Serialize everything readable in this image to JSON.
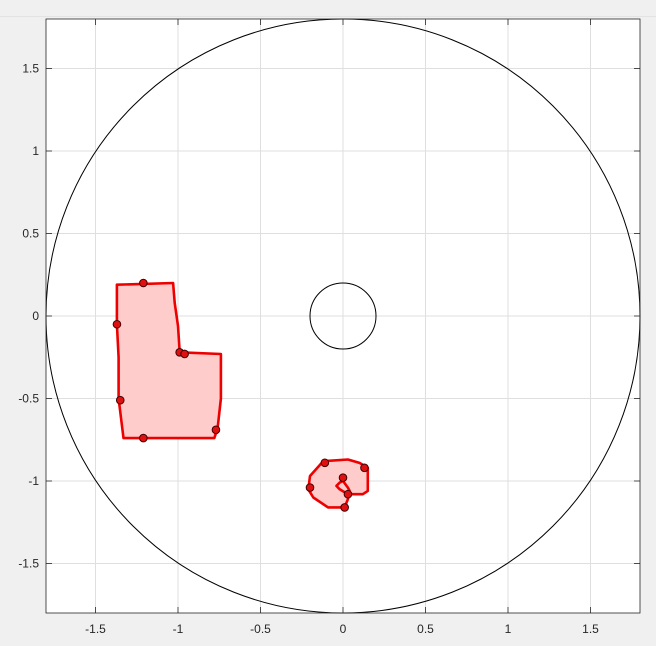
{
  "colors": {
    "figure_bg": "#f0f0f0",
    "axes_bg": "#ffffff",
    "grid": "#dfdfdf",
    "axis": "#262626",
    "circle": "#000000",
    "polygon_edge": "#ee0000",
    "polygon_fill": "#ffcccc",
    "marker_fill": "#e01010",
    "marker_edge": "#400000"
  },
  "chart_data": {
    "type": "scatter",
    "title": "",
    "xlabel": "",
    "ylabel": "",
    "xlim": [
      -1.8,
      1.8
    ],
    "ylim": [
      -1.8,
      1.8
    ],
    "grid": true,
    "x_ticks": [
      -1.5,
      -1,
      -0.5,
      0,
      0.5,
      1,
      1.5
    ],
    "x_tick_labels": [
      "-1.5",
      "-1",
      "-0.5",
      "0",
      "0.5",
      "1",
      "1.5"
    ],
    "y_ticks": [
      -1.5,
      -1,
      -0.5,
      0,
      0.5,
      1,
      1.5
    ],
    "y_tick_labels": [
      "-1.5",
      "-1",
      "-0.5",
      "0",
      "0.5",
      "1",
      "1.5"
    ],
    "circles": [
      {
        "cx": 0,
        "cy": 0,
        "r": 1.8
      },
      {
        "cx": 0,
        "cy": 0,
        "r": 0.2
      }
    ],
    "polygons": [
      {
        "outline": [
          [
            -1.37,
            0.19
          ],
          [
            -1.03,
            0.2
          ],
          [
            -1.02,
            0.08
          ],
          [
            -1.0,
            -0.06
          ],
          [
            -0.99,
            -0.22
          ],
          [
            -0.74,
            -0.23
          ],
          [
            -0.74,
            -0.5
          ],
          [
            -0.76,
            -0.68
          ],
          [
            -0.78,
            -0.74
          ],
          [
            -1.33,
            -0.74
          ],
          [
            -1.36,
            -0.5
          ],
          [
            -1.36,
            -0.25
          ],
          [
            -1.37,
            -0.05
          ]
        ],
        "points": [
          [
            -1.21,
            0.2
          ],
          [
            -1.37,
            -0.05
          ],
          [
            -0.99,
            -0.22
          ],
          [
            -0.96,
            -0.23
          ],
          [
            -1.35,
            -0.51
          ],
          [
            -1.21,
            -0.74
          ],
          [
            -0.77,
            -0.69
          ]
        ]
      },
      {
        "outline": [
          [
            -0.12,
            -0.88
          ],
          [
            0.03,
            -0.87
          ],
          [
            0.1,
            -0.89
          ],
          [
            0.15,
            -0.92
          ],
          [
            0.15,
            -1.06
          ],
          [
            0.12,
            -1.08
          ],
          [
            0.03,
            -1.08
          ],
          [
            -0.02,
            -1.05
          ],
          [
            -0.04,
            -1.03
          ],
          [
            -0.02,
            -1.01
          ],
          [
            0.0,
            -1.0
          ],
          [
            0.03,
            -1.04
          ],
          [
            0.04,
            -1.06
          ],
          [
            0.03,
            -1.11
          ],
          [
            0.01,
            -1.16
          ],
          [
            -0.09,
            -1.16
          ],
          [
            -0.18,
            -1.1
          ],
          [
            -0.21,
            -1.05
          ],
          [
            -0.2,
            -0.97
          ]
        ],
        "points": [
          [
            -0.11,
            -0.89
          ],
          [
            0.0,
            -0.98
          ],
          [
            0.13,
            -0.92
          ],
          [
            -0.2,
            -1.04
          ],
          [
            0.03,
            -1.08
          ],
          [
            0.01,
            -1.16
          ]
        ]
      }
    ]
  }
}
